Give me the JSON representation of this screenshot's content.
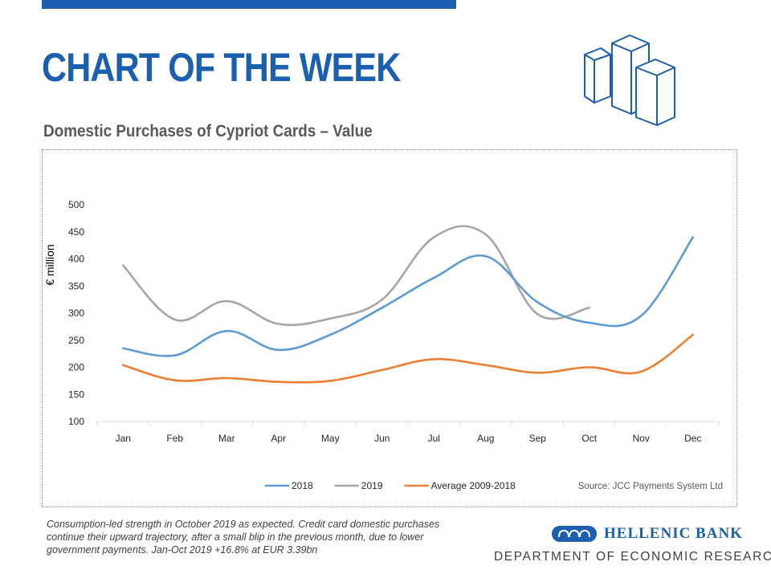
{
  "header": {
    "title": "CHART OF THE WEEK",
    "subtitle": "Domestic Purchases of Cypriot Cards – Value",
    "accent_color": "#1a5fb0"
  },
  "chart_data": {
    "type": "line",
    "categories": [
      "Jan",
      "Feb",
      "Mar",
      "Apr",
      "May",
      "Jun",
      "Jul",
      "Aug",
      "Sep",
      "Oct",
      "Nov",
      "Dec"
    ],
    "ylabel": "€ million",
    "xlabel": "",
    "ylim": [
      100,
      500
    ],
    "yticks": [
      100,
      150,
      200,
      250,
      300,
      350,
      400,
      450,
      500
    ],
    "grid": false,
    "legend_position": "bottom",
    "source": "Source: JCC Payments System Ltd",
    "series": [
      {
        "name": "2018",
        "color": "#5b9bd5",
        "values": [
          235,
          222,
          267,
          232,
          260,
          310,
          365,
          405,
          320,
          282,
          295,
          440
        ]
      },
      {
        "name": "2019",
        "color": "#a5a5a5",
        "values": [
          388,
          288,
          322,
          280,
          290,
          325,
          440,
          445,
          298,
          310,
          null,
          null
        ]
      },
      {
        "name": "Average 2009-2018",
        "color": "#ed7d31",
        "values": [
          204,
          176,
          180,
          173,
          175,
          195,
          215,
          204,
          190,
          200,
          192,
          260
        ]
      }
    ]
  },
  "footer": {
    "caption": "Consumption-led strength in October 2019 as expected. Credit card domestic purchases continue their upward trajectory, after a small blip in the previous month, due to lower government payments. Jan-Oct 2019 +16.8% at EUR 3.39bn",
    "bank_name": "HELLENIC BANK",
    "department": "DEPARTMENT OF ECONOMIC RESEARCH"
  }
}
